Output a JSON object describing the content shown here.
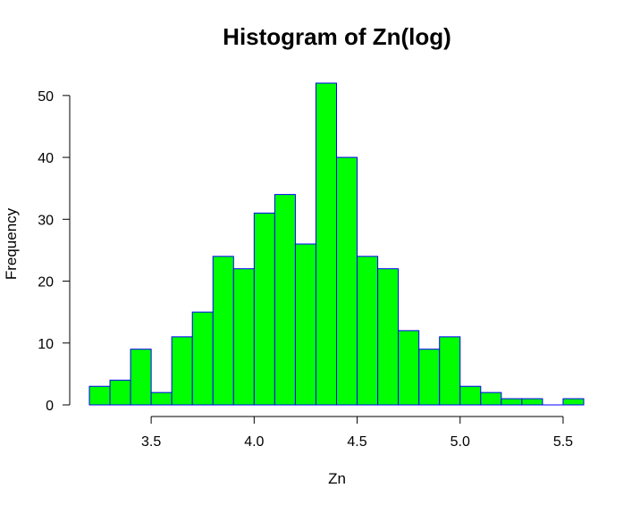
{
  "chart_data": {
    "type": "bar",
    "title": "Histogram of Zn(log)",
    "xlabel": "Zn",
    "ylabel": "Frequency",
    "bin_start": 3.2,
    "bin_width": 0.1,
    "bins": [
      {
        "x0": 3.2,
        "x1": 3.3,
        "count": 3
      },
      {
        "x0": 3.3,
        "x1": 3.4,
        "count": 4
      },
      {
        "x0": 3.4,
        "x1": 3.5,
        "count": 9
      },
      {
        "x0": 3.5,
        "x1": 3.6,
        "count": 2
      },
      {
        "x0": 3.6,
        "x1": 3.7,
        "count": 11
      },
      {
        "x0": 3.7,
        "x1": 3.8,
        "count": 15
      },
      {
        "x0": 3.8,
        "x1": 3.9,
        "count": 24
      },
      {
        "x0": 3.9,
        "x1": 4.0,
        "count": 22
      },
      {
        "x0": 4.0,
        "x1": 4.1,
        "count": 31
      },
      {
        "x0": 4.1,
        "x1": 4.2,
        "count": 34
      },
      {
        "x0": 4.2,
        "x1": 4.3,
        "count": 26
      },
      {
        "x0": 4.3,
        "x1": 4.4,
        "count": 52
      },
      {
        "x0": 4.4,
        "x1": 4.5,
        "count": 40
      },
      {
        "x0": 4.5,
        "x1": 4.6,
        "count": 24
      },
      {
        "x0": 4.6,
        "x1": 4.7,
        "count": 22
      },
      {
        "x0": 4.7,
        "x1": 4.8,
        "count": 12
      },
      {
        "x0": 4.8,
        "x1": 4.9,
        "count": 9
      },
      {
        "x0": 4.9,
        "x1": 5.0,
        "count": 11
      },
      {
        "x0": 5.0,
        "x1": 5.1,
        "count": 3
      },
      {
        "x0": 5.1,
        "x1": 5.2,
        "count": 2
      },
      {
        "x0": 5.2,
        "x1": 5.3,
        "count": 1
      },
      {
        "x0": 5.3,
        "x1": 5.4,
        "count": 1
      },
      {
        "x0": 5.4,
        "x1": 5.5,
        "count": 0
      },
      {
        "x0": 5.5,
        "x1": 5.6,
        "count": 1
      }
    ],
    "xlim": [
      3.2,
      5.6
    ],
    "ylim": [
      0,
      52
    ],
    "x_ticks": [
      3.5,
      4.0,
      4.5,
      5.0,
      5.5
    ],
    "x_tick_labels": [
      "3.5",
      "4.0",
      "4.5",
      "5.0",
      "5.5"
    ],
    "y_ticks": [
      0,
      10,
      20,
      30,
      40,
      50
    ],
    "y_tick_labels": [
      "0",
      "10",
      "20",
      "30",
      "40",
      "50"
    ],
    "grid": false,
    "legend": "none",
    "bar_fill": "#00ff00",
    "bar_border": "#0000ff"
  }
}
